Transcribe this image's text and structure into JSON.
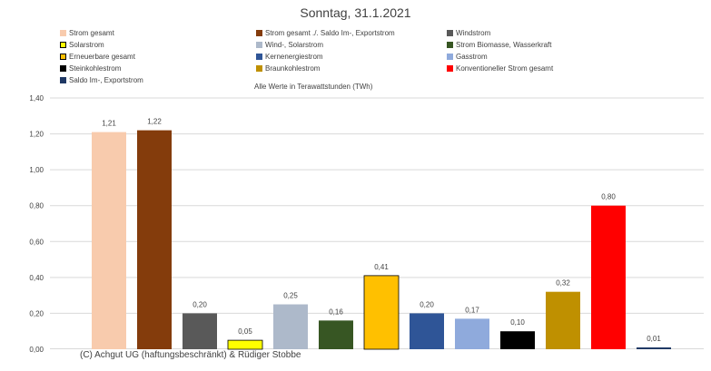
{
  "chart_data": {
    "type": "bar",
    "title": "Sonntag, 31.1.2021",
    "note": "Alle Werte in Terawattstunden (TWh)",
    "footer": "(C) Achgut UG (haftungsbeschränkt) & Rüdiger Stobbe",
    "ylim": [
      0,
      1.4
    ],
    "yticks": [
      "0,00",
      "0,20",
      "0,40",
      "0,60",
      "0,80",
      "1,00",
      "1,20",
      "1,40"
    ],
    "grid": true,
    "legend_position": "top",
    "categories": [
      "Strom gesamt",
      "Strom gesamt ./. Saldo Im-, Exportstrom",
      "Windstrom",
      "Solarstrom",
      "Wind-, Solarstrom",
      "Strom Biomasse, Wasserkraft",
      "Erneuerbare gesamt",
      "Kernenergiestrom",
      "Gasstrom",
      "Steinkohlestrom",
      "Braunkohlestrom",
      "Konventioneller Strom gesamt",
      "Saldo Im-, Exportstrom"
    ],
    "values": [
      1.21,
      1.22,
      0.2,
      0.05,
      0.25,
      0.16,
      0.41,
      0.2,
      0.17,
      0.1,
      0.32,
      0.8,
      0.01
    ],
    "labels": [
      "1,21",
      "1,22",
      "0,20",
      "0,05",
      "0,25",
      "0,16",
      "0,41",
      "0,20",
      "0,17",
      "0,10",
      "0,32",
      "0,80",
      "0,01"
    ],
    "colors": [
      "#F8CBAD",
      "#843C0C",
      "#595959",
      "#FFFF00",
      "#ADB9CA",
      "#375623",
      "#FFC000",
      "#2F5597",
      "#8FAADC",
      "#000000",
      "#BF9000",
      "#FF0000",
      "#1F3864"
    ]
  }
}
